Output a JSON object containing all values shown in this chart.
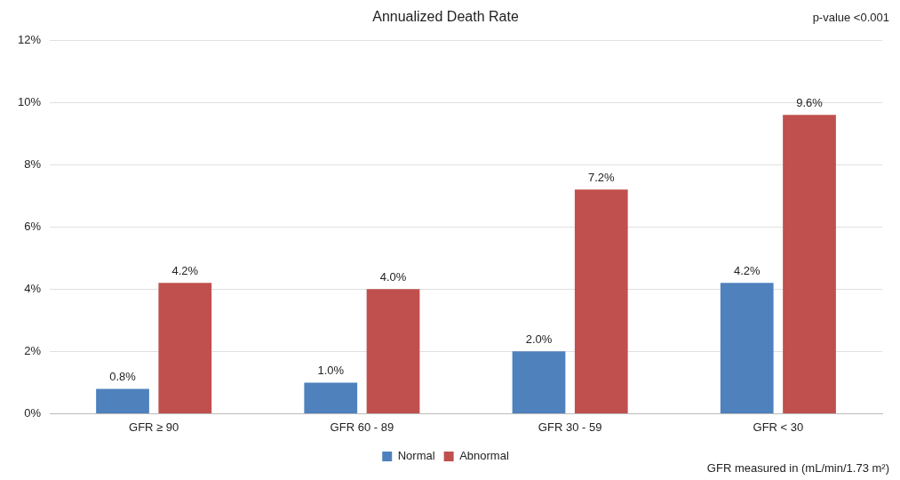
{
  "chart_data": {
    "type": "bar",
    "title": "Annualized Death Rate",
    "categories": [
      "GFR ≥ 90",
      "GFR 60 - 89",
      "GFR 30 - 59",
      "GFR < 30"
    ],
    "series": [
      {
        "name": "Normal",
        "color": "#4f81bd",
        "values": [
          0.8,
          1.0,
          2.0,
          4.2
        ],
        "value_labels": [
          "0.8%",
          "1.0%",
          "2.0%",
          "4.2%"
        ]
      },
      {
        "name": "Abnormal",
        "color": "#c0504d",
        "values": [
          4.2,
          4.0,
          7.2,
          9.6
        ],
        "value_labels": [
          "4.2%",
          "4.0%",
          "7.2%",
          "9.6%"
        ]
      }
    ],
    "ylim": [
      0,
      12
    ],
    "yticks": [
      {
        "value": 0,
        "label": "0%"
      },
      {
        "value": 2,
        "label": "2%"
      },
      {
        "value": 4,
        "label": "4%"
      },
      {
        "value": 6,
        "label": "6%"
      },
      {
        "value": 8,
        "label": "8%"
      },
      {
        "value": 10,
        "label": "10%"
      },
      {
        "value": 12,
        "label": "12%"
      }
    ],
    "grid": "y",
    "legend": "bottom",
    "annotations": [
      "p-value <0.001",
      "GFR measured in (mL/min/1.73 m²)"
    ]
  }
}
